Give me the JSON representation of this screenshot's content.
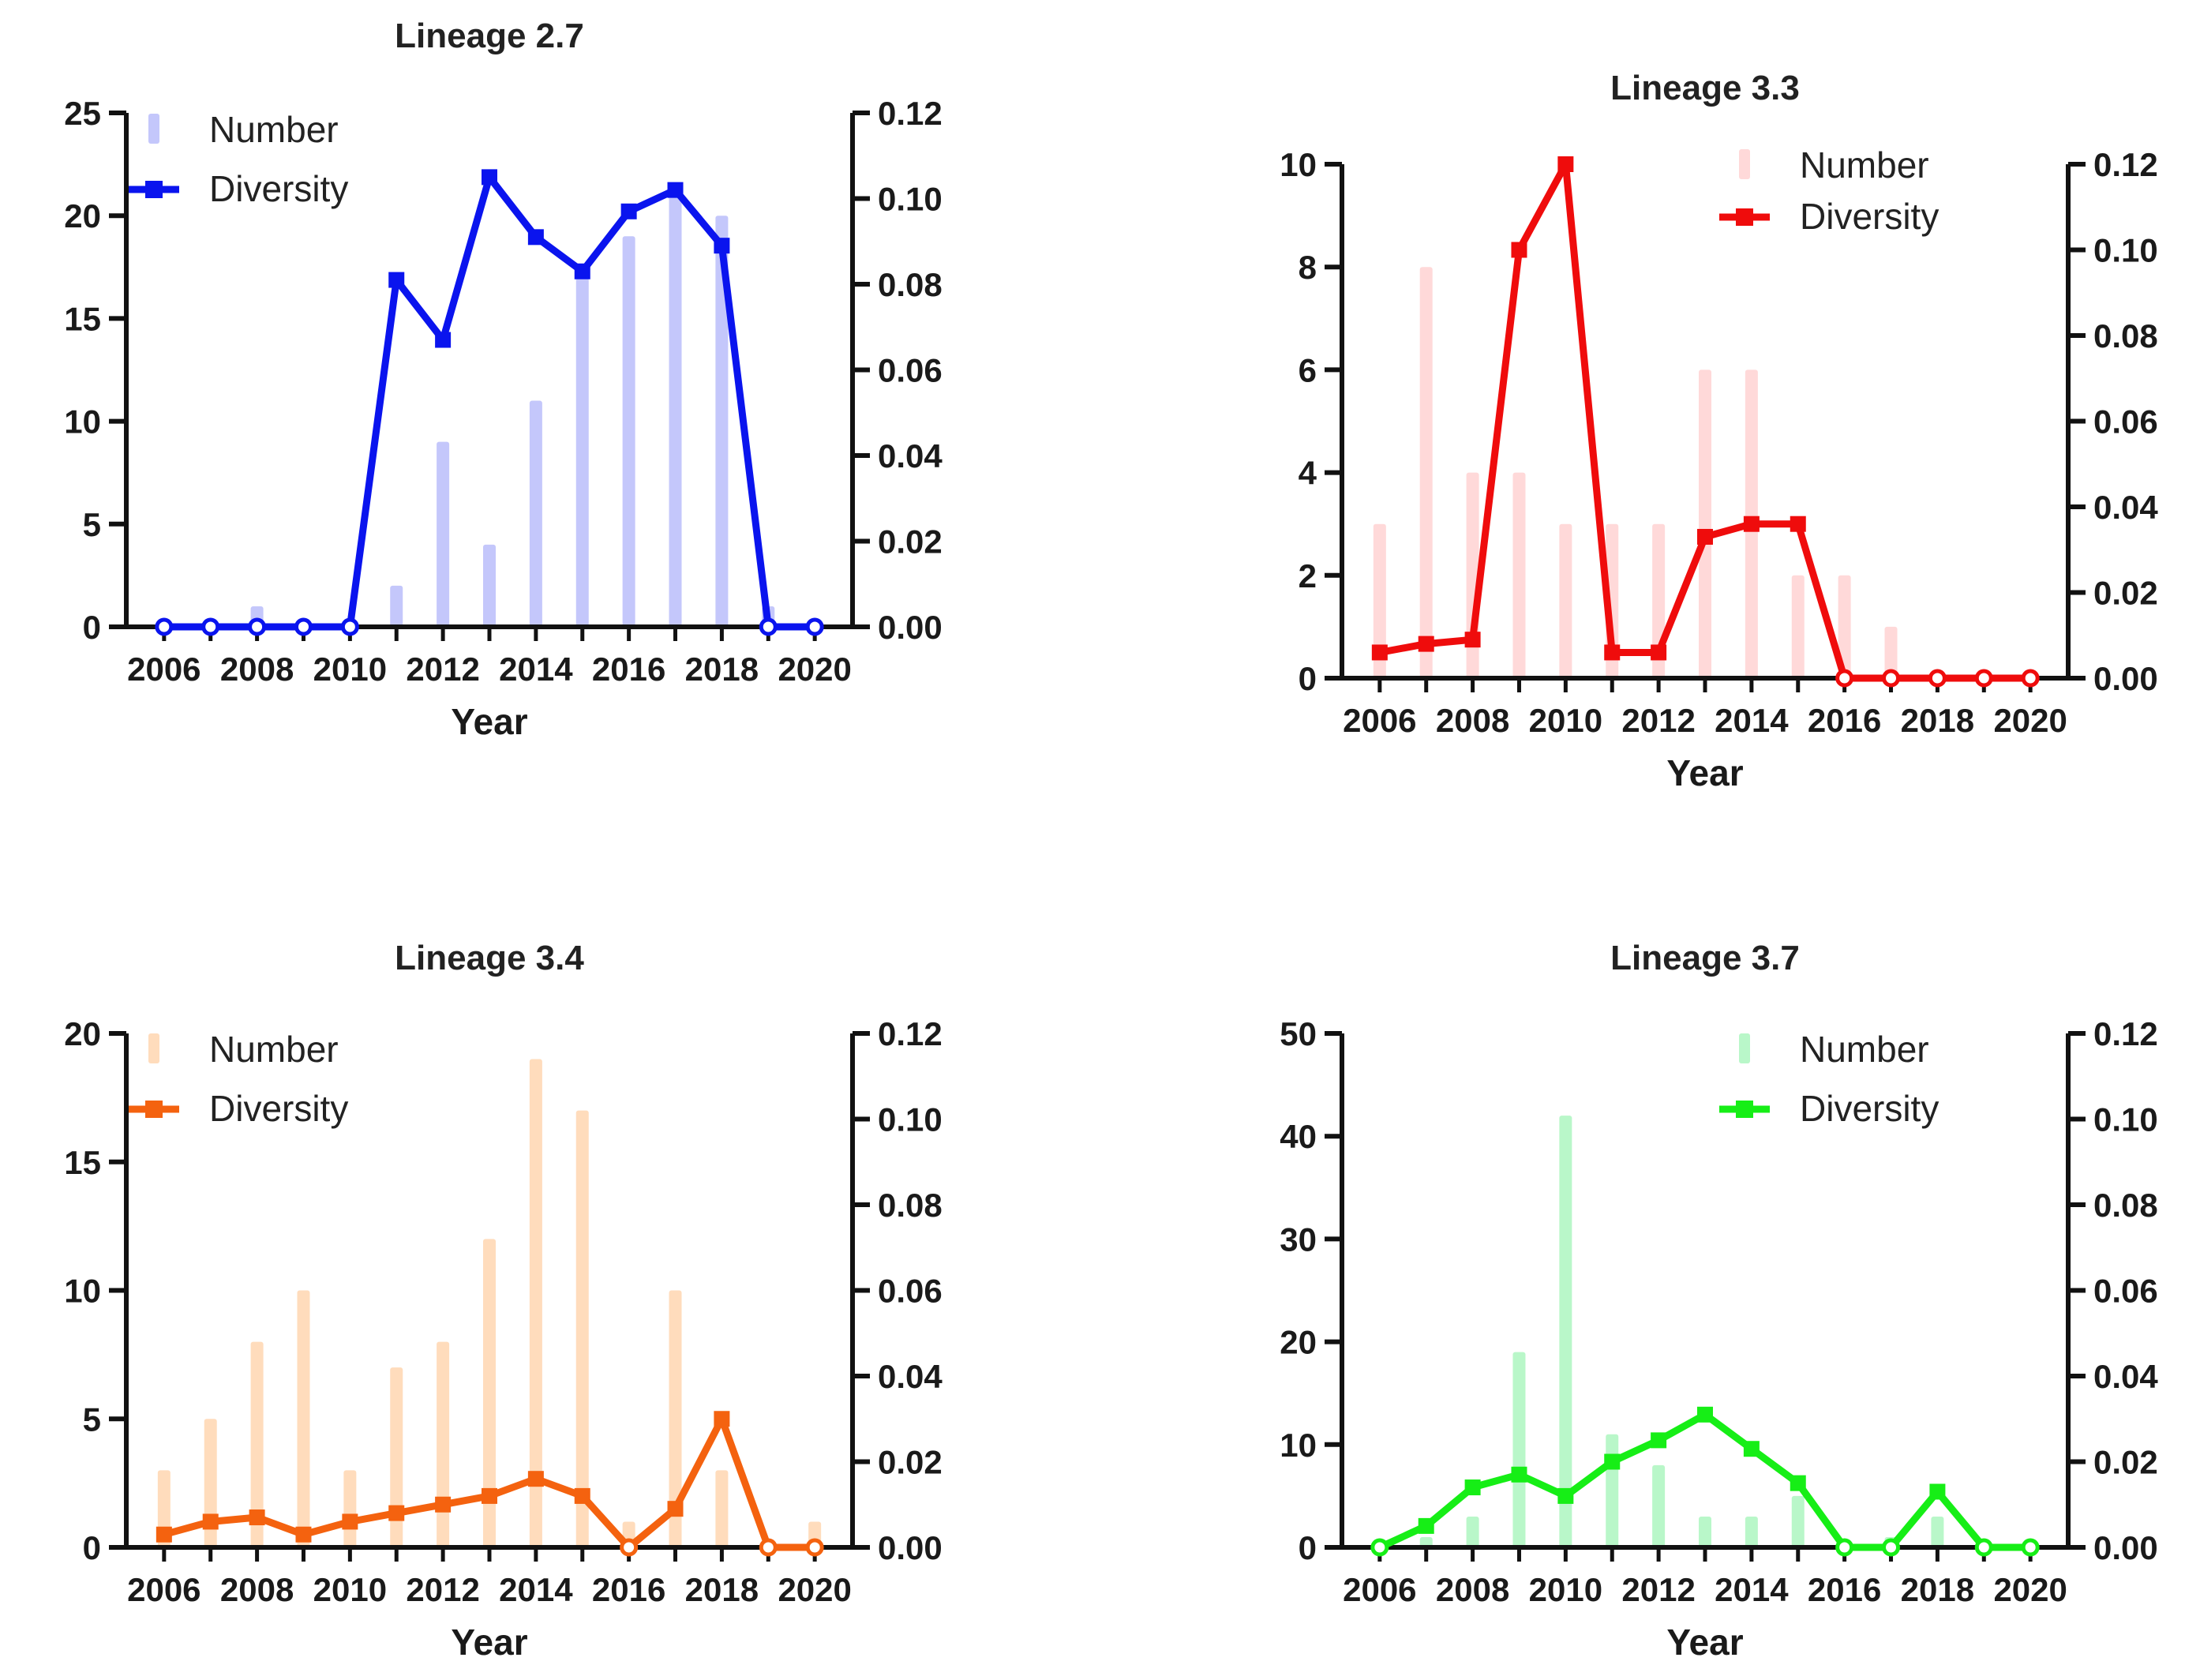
{
  "chart_data": [
    {
      "type": "bar+line",
      "title": "Lineage 2.7",
      "xlabel": "Year",
      "ylabel_left": "",
      "ylabel_right": "",
      "x": [
        2006,
        2007,
        2008,
        2009,
        2010,
        2011,
        2012,
        2013,
        2014,
        2015,
        2016,
        2017,
        2018,
        2019,
        2020
      ],
      "x_ticks": [
        "2006",
        "2008",
        "2010",
        "2012",
        "2014",
        "2016",
        "2018",
        "2020"
      ],
      "ylim_left": [
        0,
        25
      ],
      "y_ticks_left": [
        "0",
        "5",
        "10",
        "15",
        "20",
        "25"
      ],
      "ylim_right": [
        0,
        0.12
      ],
      "y_ticks_right": [
        "0.00",
        "0.02",
        "0.04",
        "0.06",
        "0.08",
        "0.10",
        "0.12"
      ],
      "legend": [
        "Number",
        "Diversity"
      ],
      "legend_position": "top-left",
      "line_color": "#0a14ee",
      "bar_color": "#c4c7fb",
      "series": [
        {
          "name": "Number",
          "kind": "bar",
          "axis": "left",
          "values": [
            0,
            0,
            1,
            0,
            0,
            2,
            9,
            4,
            11,
            17,
            19,
            21,
            20,
            1,
            0
          ]
        },
        {
          "name": "Diversity",
          "kind": "line",
          "axis": "right",
          "values": [
            0,
            0,
            0,
            0,
            0,
            0.081,
            0.067,
            0.105,
            0.091,
            0.083,
            0.097,
            0.102,
            0.089,
            0,
            0
          ]
        }
      ]
    },
    {
      "type": "bar+line",
      "title": "Lineage 3.3",
      "xlabel": "Year",
      "ylabel_left": "",
      "ylabel_right": "",
      "x": [
        2006,
        2007,
        2008,
        2009,
        2010,
        2011,
        2012,
        2013,
        2014,
        2015,
        2016,
        2017,
        2018,
        2019,
        2020
      ],
      "x_ticks": [
        "2006",
        "2008",
        "2010",
        "2012",
        "2014",
        "2016",
        "2018",
        "2020"
      ],
      "ylim_left": [
        0,
        10
      ],
      "y_ticks_left": [
        "0",
        "2",
        "4",
        "6",
        "8",
        "10"
      ],
      "ylim_right": [
        0,
        0.12
      ],
      "y_ticks_right": [
        "0.00",
        "0.02",
        "0.04",
        "0.06",
        "0.08",
        "0.10",
        "0.12"
      ],
      "legend": [
        "Number",
        "Diversity"
      ],
      "legend_position": "top-right",
      "line_color": "#ef0c0c",
      "bar_color": "#ffd9d9",
      "series": [
        {
          "name": "Number",
          "kind": "bar",
          "axis": "left",
          "values": [
            3,
            8,
            4,
            4,
            3,
            3,
            3,
            6,
            6,
            2,
            2,
            1,
            0,
            0,
            0
          ]
        },
        {
          "name": "Diversity",
          "kind": "line",
          "axis": "right",
          "values": [
            0.006,
            0.008,
            0.009,
            0.1,
            0.12,
            0.006,
            0.006,
            0.033,
            0.036,
            0.036,
            0,
            0,
            0,
            0,
            0
          ]
        }
      ]
    },
    {
      "type": "bar+line",
      "title": "Lineage 3.4",
      "xlabel": "Year",
      "ylabel_left": "",
      "ylabel_right": "",
      "x": [
        2006,
        2007,
        2008,
        2009,
        2010,
        2011,
        2012,
        2013,
        2014,
        2015,
        2016,
        2017,
        2018,
        2019,
        2020
      ],
      "x_ticks": [
        "2006",
        "2008",
        "2010",
        "2012",
        "2014",
        "2016",
        "2018",
        "2020"
      ],
      "ylim_left": [
        0,
        20
      ],
      "y_ticks_left": [
        "0",
        "5",
        "10",
        "15",
        "20"
      ],
      "ylim_right": [
        0,
        0.12
      ],
      "y_ticks_right": [
        "0.00",
        "0.02",
        "0.04",
        "0.06",
        "0.08",
        "0.10",
        "0.12"
      ],
      "legend": [
        "Number",
        "Diversity"
      ],
      "legend_position": "top-left",
      "line_color": "#f4620f",
      "bar_color": "#ffdcbc",
      "series": [
        {
          "name": "Number",
          "kind": "bar",
          "axis": "left",
          "values": [
            3,
            5,
            8,
            10,
            3,
            7,
            8,
            12,
            19,
            17,
            1,
            10,
            3,
            0,
            1
          ]
        },
        {
          "name": "Diversity",
          "kind": "line",
          "axis": "right",
          "values": [
            0.003,
            0.006,
            0.007,
            0.003,
            0.006,
            0.008,
            0.01,
            0.012,
            0.016,
            0.012,
            0,
            0.009,
            0.03,
            0,
            0
          ]
        }
      ]
    },
    {
      "type": "bar+line",
      "title": "Lineage 3.7",
      "xlabel": "Year",
      "ylabel_left": "",
      "ylabel_right": "",
      "x": [
        2006,
        2007,
        2008,
        2009,
        2010,
        2011,
        2012,
        2013,
        2014,
        2015,
        2016,
        2017,
        2018,
        2019,
        2020
      ],
      "x_ticks": [
        "2006",
        "2008",
        "2010",
        "2012",
        "2014",
        "2016",
        "2018",
        "2020"
      ],
      "ylim_left": [
        0,
        50
      ],
      "y_ticks_left": [
        "0",
        "10",
        "20",
        "30",
        "40",
        "50"
      ],
      "ylim_right": [
        0,
        0.12
      ],
      "y_ticks_right": [
        "0.00",
        "0.02",
        "0.04",
        "0.06",
        "0.08",
        "0.10",
        "0.12"
      ],
      "legend": [
        "Number",
        "Diversity"
      ],
      "legend_position": "top-right",
      "line_color": "#16ee16",
      "bar_color": "#b9f7c9",
      "series": [
        {
          "name": "Number",
          "kind": "bar",
          "axis": "left",
          "values": [
            0,
            1,
            3,
            19,
            42,
            11,
            8,
            3,
            3,
            5,
            0,
            1,
            3,
            0,
            0
          ]
        },
        {
          "name": "Diversity",
          "kind": "line",
          "axis": "right",
          "values": [
            0,
            0.005,
            0.014,
            0.017,
            0.012,
            0.02,
            0.025,
            0.031,
            0.023,
            0.015,
            0,
            0,
            0.013,
            0,
            0
          ]
        }
      ]
    }
  ]
}
